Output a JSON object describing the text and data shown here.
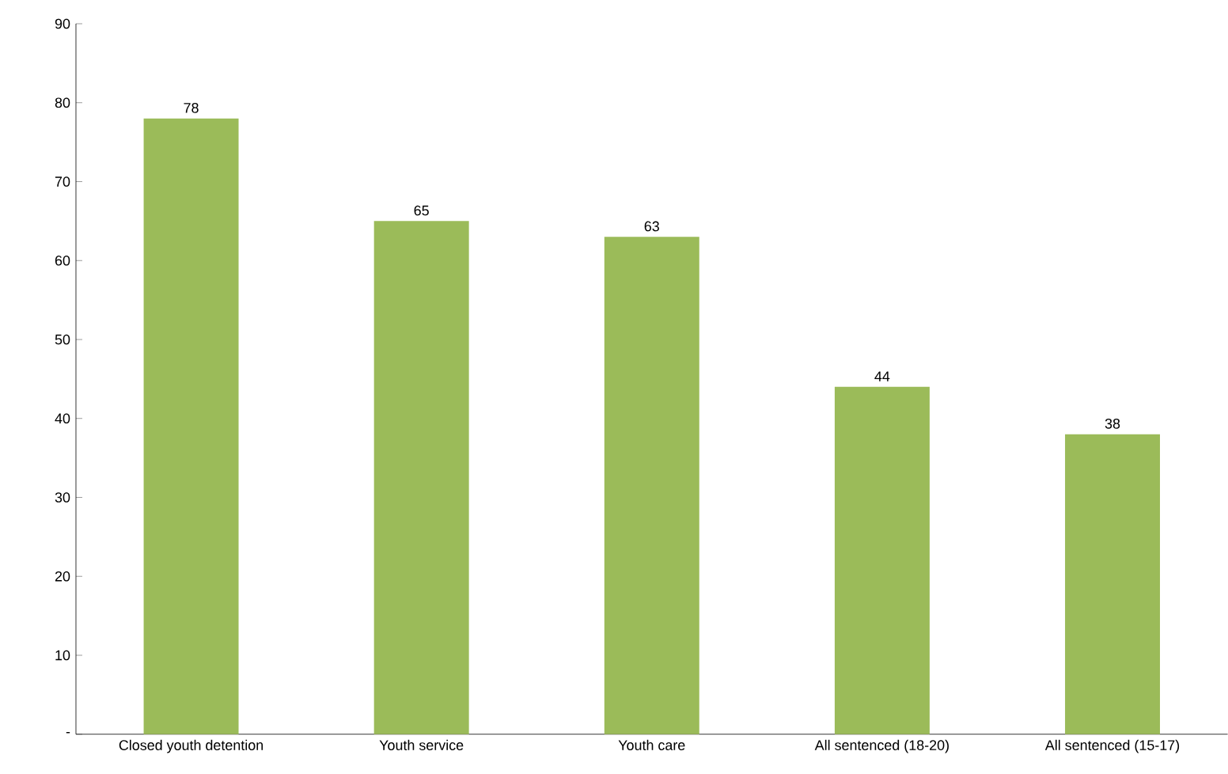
{
  "chart_data": {
    "type": "bar",
    "categories": [
      "Closed youth detention",
      "Youth service",
      "Youth care",
      "All sentenced (18-20)",
      "All sentenced (15-17)"
    ],
    "values": [
      78,
      65,
      63,
      44,
      38
    ],
    "color": "#9bbb59",
    "ylim": [
      0,
      90
    ],
    "yticks": [
      {
        "value": 0,
        "label": "-"
      },
      10,
      20,
      30,
      40,
      50,
      60,
      70,
      80,
      90
    ],
    "data_labels": true
  }
}
